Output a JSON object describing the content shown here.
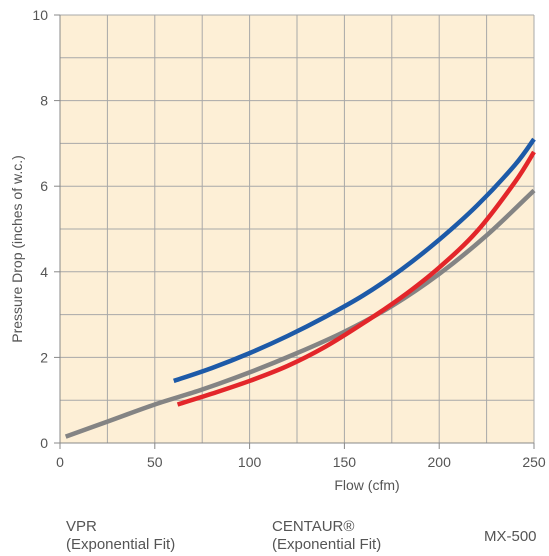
{
  "chart_data": {
    "type": "line",
    "xlabel": "Flow (cfm)",
    "ylabel": "Pressure Drop (inches of w.c.)",
    "xlim": [
      0,
      250
    ],
    "ylim": [
      0,
      10
    ],
    "x_ticks": [
      "0",
      "50",
      "100",
      "150",
      "200",
      "250"
    ],
    "y_ticks": [
      "0",
      "2",
      "4",
      "6",
      "8",
      "10"
    ],
    "grid": true,
    "background_color": "#fdefd6",
    "grid_color": "#a8a8a8",
    "series": [
      {
        "name_lines": [
          "VPR",
          "(Exponential Fit)"
        ],
        "color": "#1d5aa8",
        "x": [
          60,
          80,
          100,
          120,
          140,
          160,
          180,
          200,
          220,
          240,
          250
        ],
        "y": [
          1.45,
          1.75,
          2.1,
          2.5,
          2.95,
          3.45,
          4.05,
          4.75,
          5.55,
          6.5,
          7.1
        ]
      },
      {
        "name_lines": [
          "CENTAUR®",
          "(Exponential Fit)"
        ],
        "color": "#e3262a",
        "x": [
          62,
          80,
          100,
          120,
          140,
          160,
          180,
          200,
          220,
          240,
          250
        ],
        "y": [
          0.9,
          1.15,
          1.45,
          1.8,
          2.25,
          2.8,
          3.4,
          4.1,
          4.95,
          6.1,
          6.8
        ]
      },
      {
        "name_lines": [
          "MX-500"
        ],
        "color": "#848484",
        "x": [
          3,
          25,
          50,
          75,
          100,
          125,
          150,
          175,
          200,
          225,
          250
        ],
        "y": [
          0.15,
          0.5,
          0.9,
          1.25,
          1.65,
          2.1,
          2.6,
          3.2,
          3.95,
          4.85,
          5.9
        ]
      }
    ]
  }
}
